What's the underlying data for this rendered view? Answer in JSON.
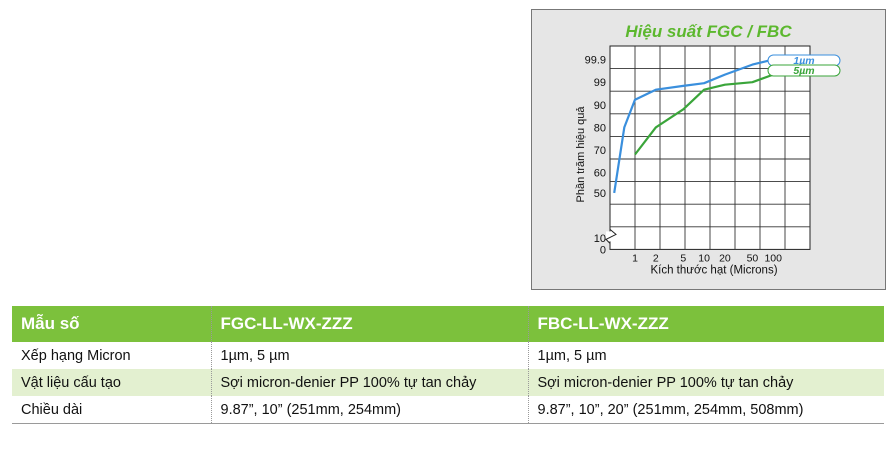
{
  "chart": {
    "title": "Hiệu suất FGC / FBC",
    "ylabel": "Phần trăm hiệu quả",
    "xlabel": "Kích thước hạt (Microns)"
  },
  "chart_data": {
    "type": "line",
    "title": "Hiệu suất FGC / FBC",
    "xlabel": "Kích thước hạt (Microns)",
    "ylabel": "Phần trăm hiệu quả",
    "x_ticks": [
      "1",
      "2",
      "5",
      "10",
      "20",
      "50",
      "100"
    ],
    "y_ticks": [
      "0",
      "10",
      "50",
      "60",
      "70",
      "80",
      "90",
      "99",
      "99.9"
    ],
    "grid": true,
    "legend": "top-right",
    "series": [
      {
        "name": "1µm",
        "color": "#3a8fdd",
        "x": [
          0.5,
          0.7,
          1,
          2,
          5,
          10,
          20,
          50,
          100
        ],
        "y": [
          50,
          80,
          92,
          96,
          97.5,
          98.6,
          99.3,
          99.7,
          99.9
        ]
      },
      {
        "name": "5µm",
        "color": "#3aa53a",
        "x": [
          1,
          2,
          5,
          10,
          20,
          50,
          100
        ],
        "y": [
          68,
          80,
          88,
          96,
          98,
          99,
          99.3
        ]
      }
    ]
  },
  "table": {
    "headers": [
      "Mẫu số",
      "FGC-LL-WX-ZZZ",
      "FBC-LL-WX-ZZZ"
    ],
    "rows": [
      [
        "Xếp hạng Micron",
        "1µm, 5 µm",
        "1µm, 5 µm"
      ],
      [
        "Vật liệu cấu tạo",
        "Sợi micron-denier PP 100% tự tan chảy",
        "Sợi micron-denier PP 100% tự tan chảy"
      ],
      [
        "Chiều dài",
        "9.87”, 10” (251mm, 254mm)",
        "9.87”, 10”, 20” (251mm, 254mm, 508mm)"
      ]
    ]
  }
}
